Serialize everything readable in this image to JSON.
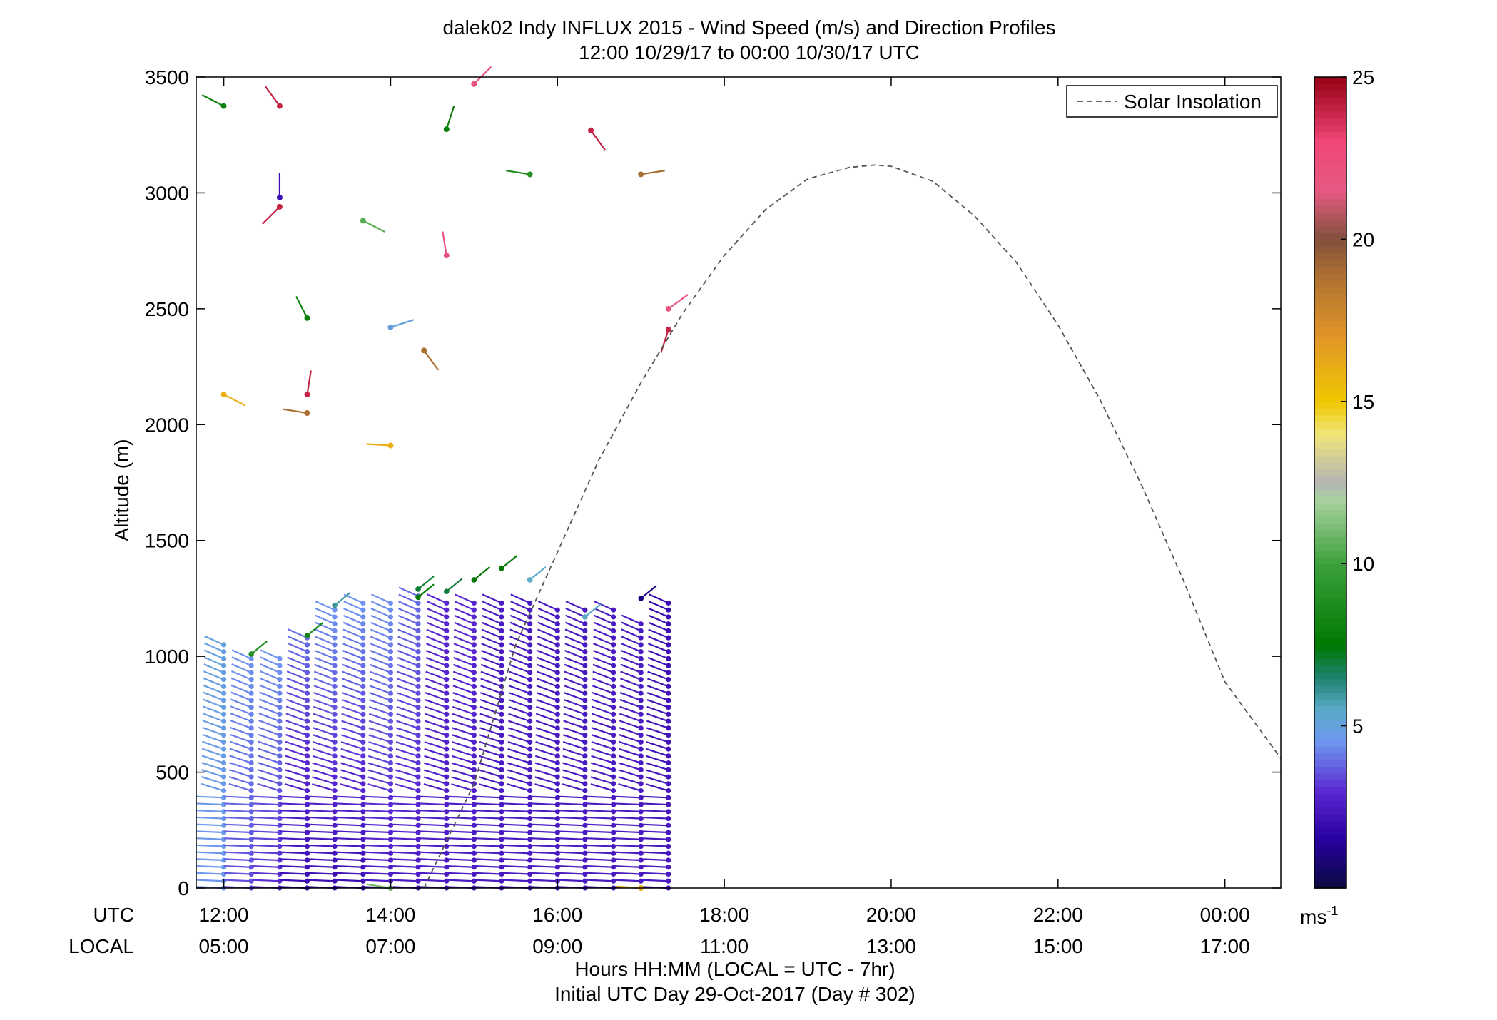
{
  "title_line1": "dalek02 Indy INFLUX 2015 - Wind Speed (m/s) and Direction Profiles",
  "title_line2": "12:00 10/29/17 to 00:00 10/30/17  UTC",
  "xlabel_line1": "Hours HH:MM  (LOCAL = UTC - 7hr)",
  "xlabel_line2": "Initial UTC Day 29-Oct-2017 (Day # 302)",
  "row_label_utc": "UTC",
  "row_label_local": "LOCAL",
  "colorbar_unit": "ms",
  "colorbar_unit_exp": "-1",
  "legend_label": "Solar Insolation",
  "chart_data": {
    "type": "scatter",
    "title": "dalek02 Indy INFLUX 2015 - Wind Speed (m/s) and Direction Profiles",
    "ylabel": "Altitude (m)",
    "xlabel": "Hours HH:MM  (LOCAL = UTC - 7hr)",
    "xlim_hours_utc": [
      11.67,
      24.67
    ],
    "ylim": [
      0,
      3500
    ],
    "x_ticks_utc": [
      "12:00",
      "14:00",
      "16:00",
      "18:00",
      "20:00",
      "22:00",
      "00:00"
    ],
    "x_ticks_local": [
      "05:00",
      "07:00",
      "09:00",
      "11:00",
      "13:00",
      "15:00",
      "17:00"
    ],
    "x_tick_hours": [
      12,
      14,
      16,
      18,
      20,
      22,
      24
    ],
    "y_ticks": [
      0,
      500,
      1000,
      1500,
      2000,
      2500,
      3000,
      3500
    ],
    "colorbar": {
      "label": "ms-1",
      "range": [
        0,
        25
      ],
      "ticks": [
        5,
        10,
        15,
        20,
        25
      ]
    },
    "legend": {
      "position": "top-right",
      "entries": [
        "Solar Insolation"
      ]
    },
    "solar_insolation": {
      "style": "dashed",
      "hours": [
        14.4,
        15.0,
        15.5,
        16.0,
        16.5,
        17.0,
        17.5,
        18.0,
        18.5,
        19.0,
        19.5,
        19.8,
        20.0,
        20.5,
        21.0,
        21.5,
        22.0,
        22.5,
        23.0,
        23.5,
        24.0,
        24.67
      ],
      "values": [
        0,
        450,
        1050,
        1450,
        1850,
        2180,
        2480,
        2730,
        2930,
        3060,
        3110,
        3120,
        3115,
        3050,
        2900,
        2700,
        2430,
        2110,
        1740,
        1330,
        890,
        560
      ]
    },
    "profile_times_utc": [
      12.0,
      12.33,
      12.67,
      13.0,
      13.33,
      13.67,
      14.0,
      14.33,
      14.67,
      15.0,
      15.33,
      15.67,
      16.0,
      16.33,
      16.67,
      17.0,
      17.33
    ],
    "profile_top_altitudes_m": [
      1050,
      1010,
      1000,
      1090,
      1200,
      1230,
      1250,
      1280,
      1250,
      1250,
      1230,
      1230,
      1200,
      1200,
      1200,
      1150,
      1250
    ],
    "profile_speed_near_surface_ms": [
      4.5,
      3.5,
      3.0,
      2.0,
      2.0,
      2.0,
      2.5,
      2.5,
      2.5,
      2.5,
      2.5,
      2.5,
      2.5,
      2.5,
      2.5,
      2.5,
      2.5
    ],
    "profile_speed_aloft_ms": [
      5.0,
      4.5,
      4.5,
      4.0,
      4.5,
      4.5,
      4.5,
      4.0,
      3.0,
      3.0,
      2.5,
      2.5,
      2.5,
      2.5,
      2.5,
      2.5,
      2.0
    ],
    "profile_top_points": [
      {
        "time": 12.33,
        "alt": 1010,
        "speed": 9.0
      },
      {
        "time": 13.0,
        "alt": 1090,
        "speed": 8.5
      },
      {
        "time": 13.33,
        "alt": 1220,
        "speed": 6.0
      },
      {
        "time": 14.33,
        "alt": 1290,
        "speed": 7.0
      },
      {
        "time": 14.33,
        "alt": 1255,
        "speed": 7.5
      },
      {
        "time": 14.67,
        "alt": 1280,
        "speed": 7.0
      },
      {
        "time": 15.0,
        "alt": 1330,
        "speed": 7.5
      },
      {
        "time": 15.33,
        "alt": 1380,
        "speed": 7.5
      },
      {
        "time": 15.67,
        "alt": 1330,
        "speed": 5.5
      },
      {
        "time": 16.33,
        "alt": 1170,
        "speed": 5.5
      },
      {
        "time": 17.0,
        "alt": 1250,
        "speed": 1.0
      }
    ],
    "scattered_points": [
      {
        "time": 12.0,
        "alt": 3375,
        "speed": 8.0
      },
      {
        "time": 12.67,
        "alt": 3375,
        "speed": 24.0
      },
      {
        "time": 14.67,
        "alt": 3275,
        "speed": 8.0
      },
      {
        "time": 15.0,
        "alt": 3470,
        "speed": 22.0
      },
      {
        "time": 16.4,
        "alt": 3270,
        "speed": 24.0
      },
      {
        "time": 15.67,
        "alt": 3080,
        "speed": 9.0
      },
      {
        "time": 17.0,
        "alt": 3080,
        "speed": 19.0
      },
      {
        "time": 12.67,
        "alt": 2980,
        "speed": 2.0
      },
      {
        "time": 12.67,
        "alt": 2940,
        "speed": 24.0
      },
      {
        "time": 13.67,
        "alt": 2880,
        "speed": 10.5
      },
      {
        "time": 14.67,
        "alt": 2730,
        "speed": 22.0
      },
      {
        "time": 13.0,
        "alt": 2460,
        "speed": 8.0
      },
      {
        "time": 14.0,
        "alt": 2420,
        "speed": 5.0
      },
      {
        "time": 17.33,
        "alt": 2500,
        "speed": 22.0
      },
      {
        "time": 17.33,
        "alt": 2410,
        "speed": 24.0
      },
      {
        "time": 14.4,
        "alt": 2320,
        "speed": 19.0
      },
      {
        "time": 12.0,
        "alt": 2130,
        "speed": 16.0
      },
      {
        "time": 13.0,
        "alt": 2130,
        "speed": 24.0
      },
      {
        "time": 13.0,
        "alt": 2050,
        "speed": 19.0
      },
      {
        "time": 14.0,
        "alt": 1910,
        "speed": 16.0
      },
      {
        "time": 14.0,
        "alt": 0,
        "speed": 11.0
      },
      {
        "time": 17.0,
        "alt": 0,
        "speed": 16.0
      }
    ]
  }
}
